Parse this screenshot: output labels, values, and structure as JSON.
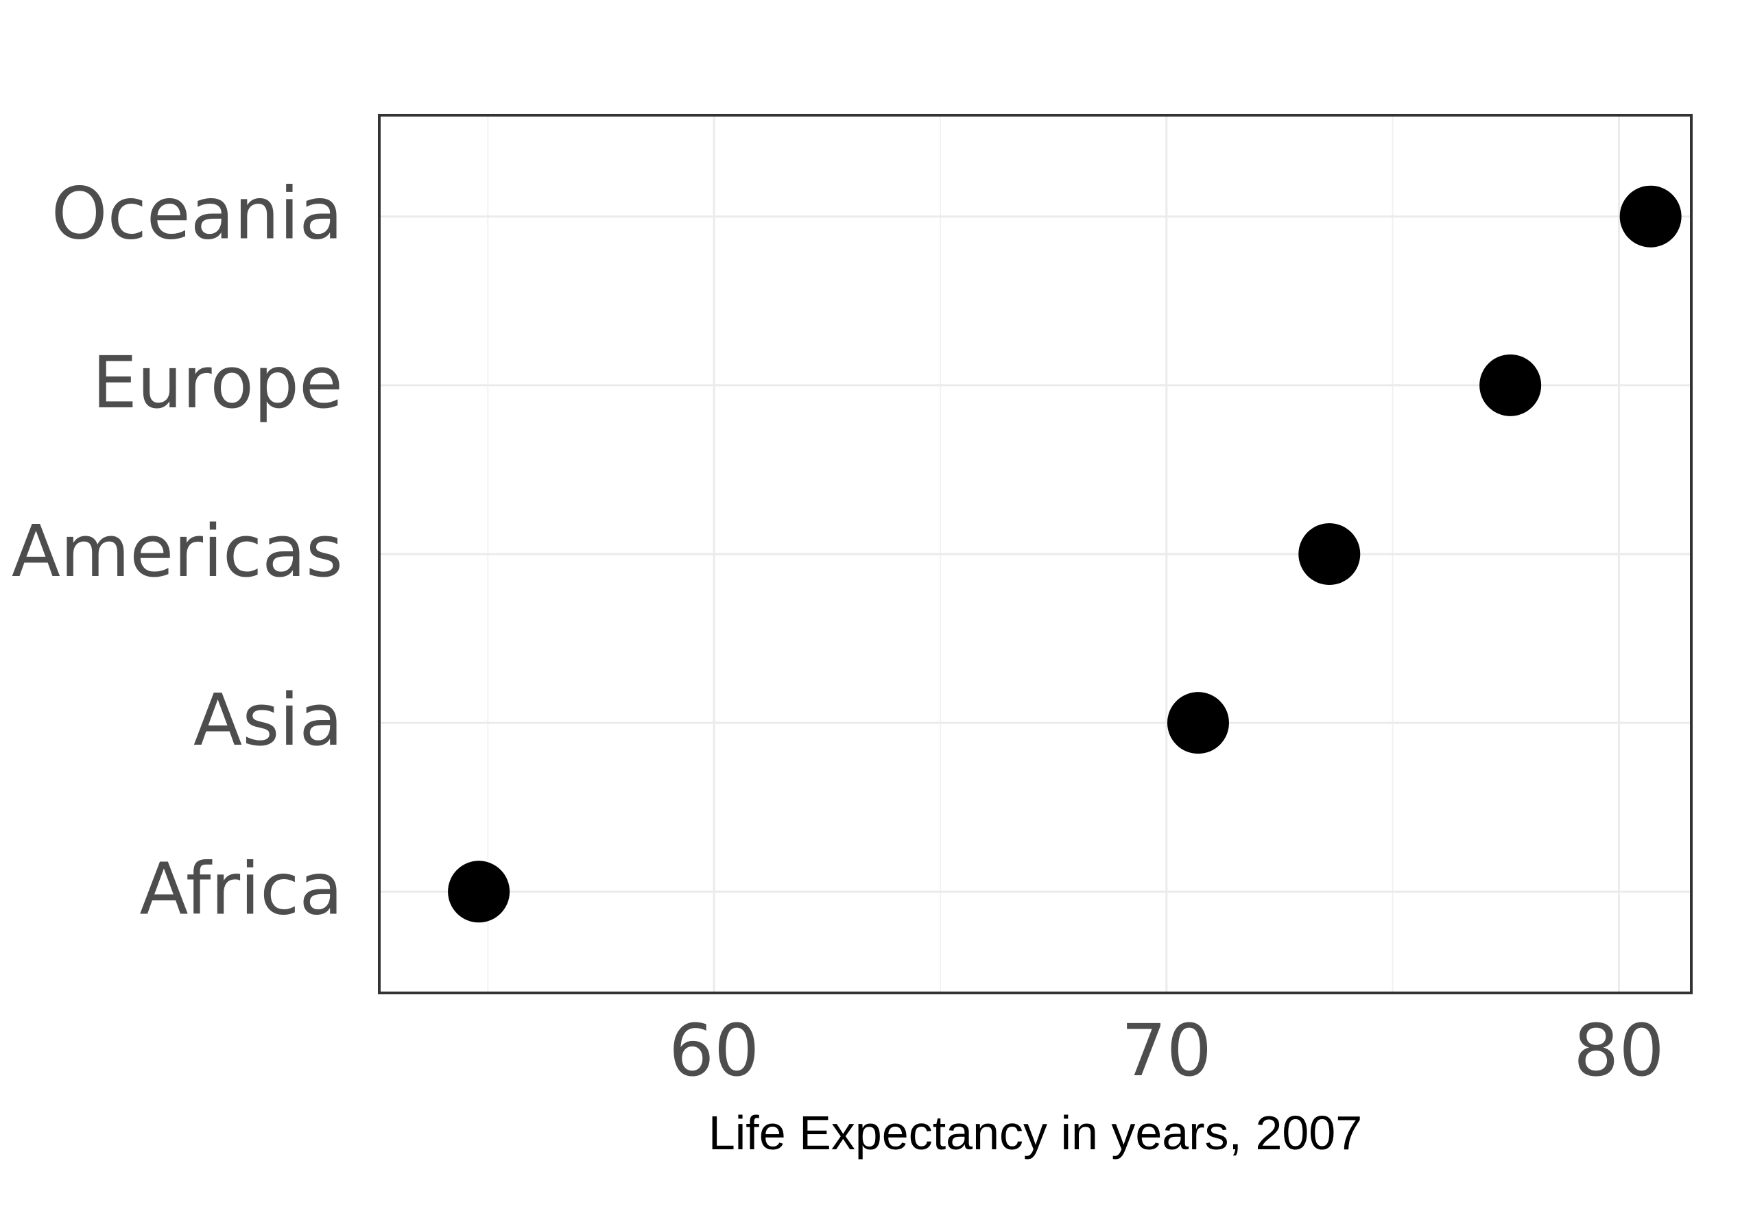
{
  "chart_data": {
    "type": "scatter",
    "title": "",
    "xlabel": "Life Expectancy in years, 2007",
    "ylabel": "",
    "xlim": [
      52.6,
      81.6
    ],
    "x_ticks": [
      60,
      70,
      80
    ],
    "x_tick_labels": [
      "60",
      "70",
      "80"
    ],
    "categories": [
      "Africa",
      "Asia",
      "Americas",
      "Europe",
      "Oceania"
    ],
    "series": [
      {
        "values": [
          54.8,
          70.7,
          73.6,
          77.6,
          80.7
        ]
      }
    ],
    "point_color": "#000000",
    "grid": true,
    "legend": "none"
  }
}
